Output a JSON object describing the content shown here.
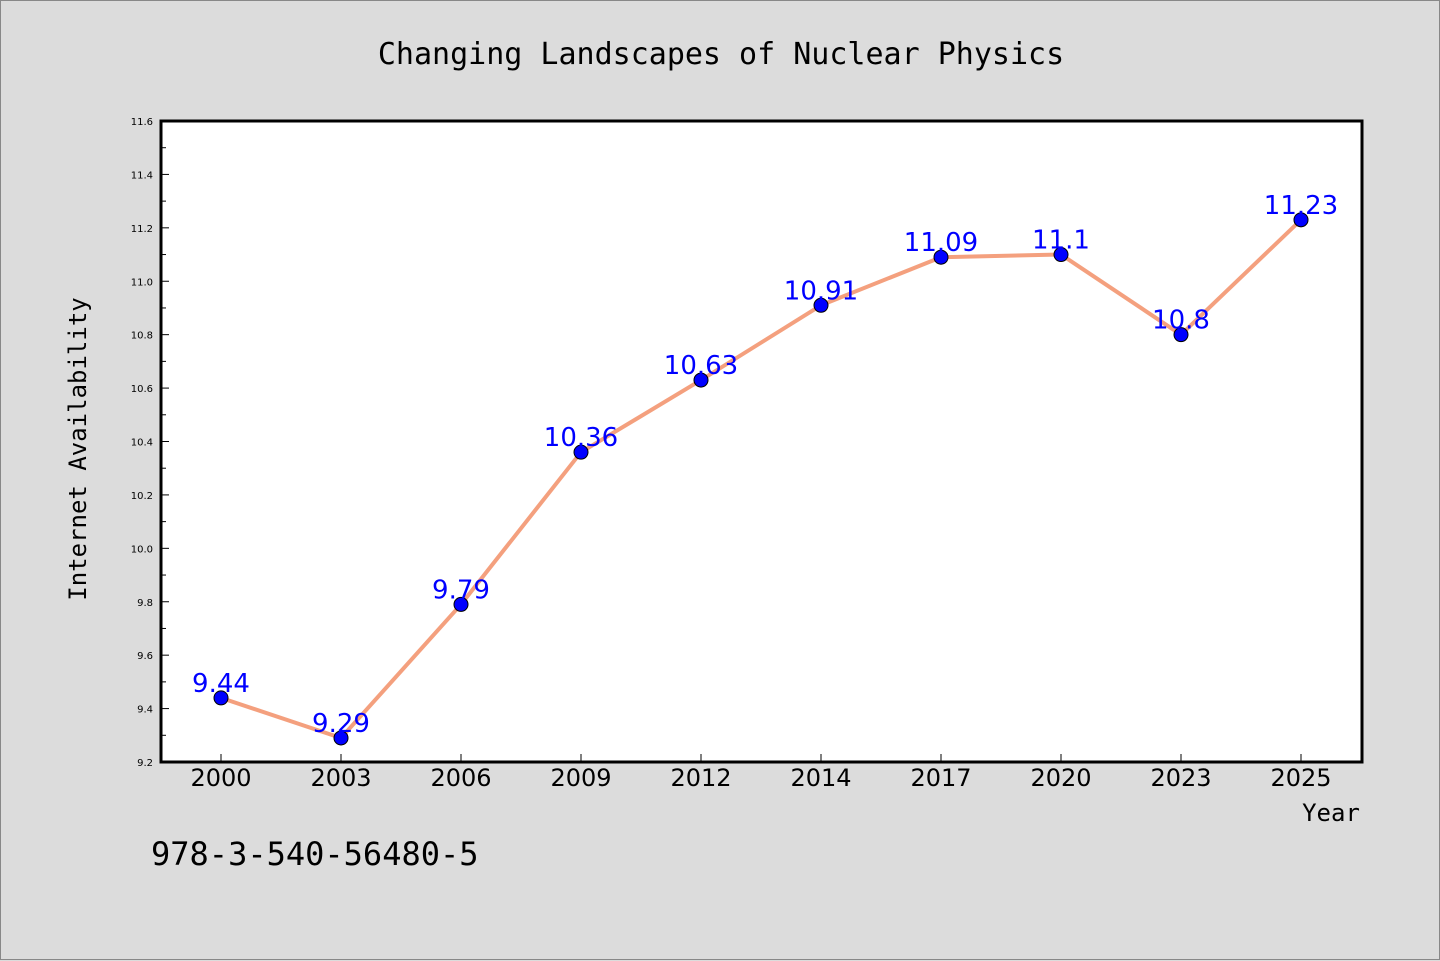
{
  "colors": {
    "background": "#dcdcdc",
    "plot_area": "#ffffff",
    "line": "#f4a07e",
    "marker": "#0000ff",
    "data_label": "#0000ff"
  },
  "footer": {
    "code": "978-3-540-56480-5"
  },
  "chart_data": {
    "type": "line",
    "title": "Changing Landscapes of Nuclear Physics",
    "xlabel": "Year",
    "ylabel": "Internet Availability",
    "categories": [
      "2000",
      "2003",
      "2006",
      "2009",
      "2012",
      "2014",
      "2017",
      "2020",
      "2023",
      "2025"
    ],
    "series": [
      {
        "values": [
          9.44,
          9.29,
          9.79,
          10.36,
          10.63,
          10.91,
          11.09,
          11.1,
          10.8,
          11.23
        ],
        "labels": [
          "9.44",
          "9.29",
          "9.79",
          "10.36",
          "10.63",
          "10.91",
          "11.09",
          "11.1",
          "10.8",
          "11.23"
        ]
      }
    ],
    "ylim": [
      9.2,
      11.6
    ],
    "yticks": [
      9.2,
      9.4,
      9.6,
      9.8,
      10.0,
      10.2,
      10.4,
      10.6,
      10.8,
      11.0,
      11.2,
      11.4,
      11.6
    ],
    "ytick_labels": [
      "9.2",
      "9.4",
      "9.6",
      "9.8",
      "10.0",
      "10.2",
      "10.4",
      "10.6",
      "10.8",
      "11.0",
      "11.2",
      "11.4",
      "11.6"
    ],
    "grid": false,
    "legend": "none"
  }
}
